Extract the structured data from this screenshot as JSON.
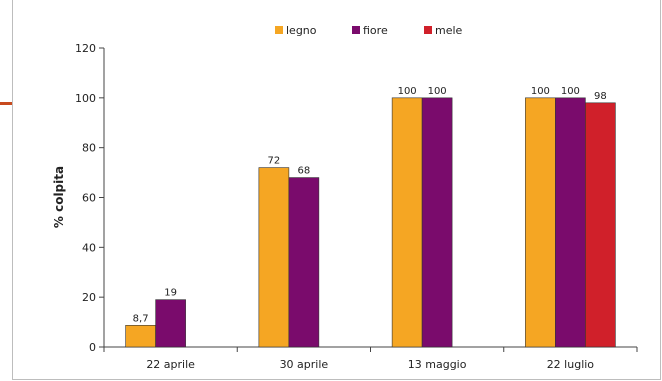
{
  "chart_data": {
    "type": "bar",
    "title": "",
    "xlabel": "",
    "ylabel": "% colpita",
    "ylim": [
      0,
      120
    ],
    "yticks": [
      0,
      20,
      40,
      60,
      80,
      100,
      120
    ],
    "grid": false,
    "legend_position": "top-center",
    "categories": [
      "22 aprile",
      "30 aprile",
      "13 maggio",
      "22 luglio"
    ],
    "series": [
      {
        "name": "legno",
        "color": "#F5A623",
        "values": [
          8.7,
          72,
          100,
          100
        ],
        "labels": [
          "8,7",
          "72",
          "100",
          "100"
        ]
      },
      {
        "name": "fiore",
        "color": "#7A0B6C",
        "values": [
          19,
          68,
          100,
          100
        ],
        "labels": [
          "19",
          "68",
          "100",
          "100"
        ]
      },
      {
        "name": "mele",
        "color": "#D0202A",
        "values": [
          null,
          null,
          null,
          98
        ],
        "labels": [
          "",
          "",
          "",
          "98"
        ]
      }
    ]
  }
}
